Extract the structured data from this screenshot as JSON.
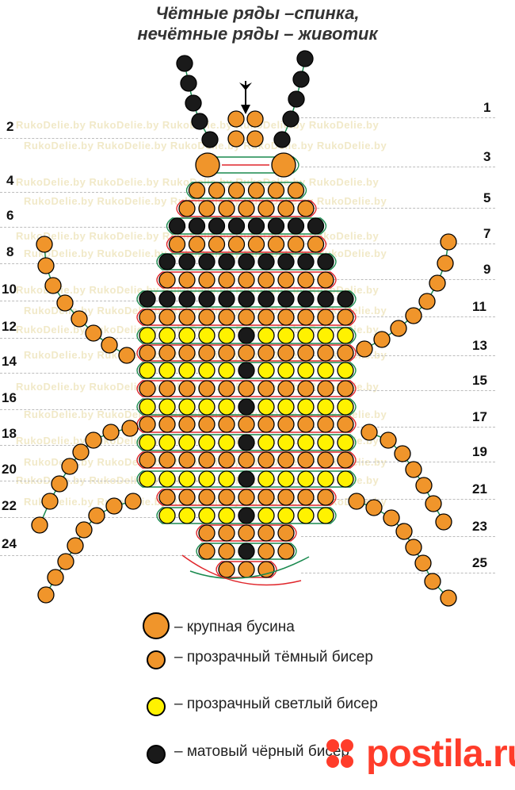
{
  "title": {
    "line1": "Чётные ряды –спинка,",
    "line2": "нечётные ряды – животик"
  },
  "watermark_text": "RukoDelie.by",
  "left_row_labels": [
    "2",
    "4",
    "6",
    "8",
    "10",
    "12",
    "14",
    "16",
    "18",
    "20",
    "22",
    "24"
  ],
  "right_row_labels": [
    "1",
    "3",
    "5",
    "7",
    "9",
    "11",
    "13",
    "15",
    "17",
    "19",
    "21",
    "23",
    "25"
  ],
  "legend": [
    {
      "bead": "large",
      "text": "– крупная бусина"
    },
    {
      "bead": "dark",
      "text": "– прозрачный тёмный бисер"
    },
    {
      "bead": "light",
      "text": "– прозрачный светлый бисер"
    },
    {
      "bead": "black",
      "text": "– матовый чёрный бисер"
    }
  ],
  "brand": "postila.ru",
  "colors": {
    "orange": "#f0952b",
    "yellow": "#fff200",
    "black": "#1a1a1a",
    "thread_red": "#e0262b",
    "thread_green": "#1a8a4f"
  },
  "icons": [
    "arrow-down-icon",
    "postila-logo-icon"
  ]
}
